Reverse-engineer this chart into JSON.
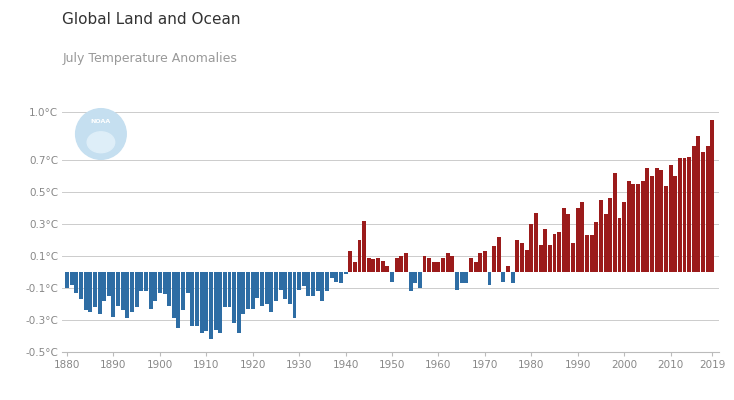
{
  "title_line1": "Global Land and Ocean",
  "title_line2": "July Temperature Anomalies",
  "title1_fontsize": 11,
  "title2_fontsize": 9,
  "ylim": [
    -0.5,
    1.05
  ],
  "xlim": [
    1879,
    2020.5
  ],
  "yticks": [
    -0.5,
    -0.3,
    -0.1,
    0.1,
    0.3,
    0.5,
    0.7,
    1.0
  ],
  "ytick_labels": [
    "-0.5°C",
    "-0.3°C",
    "-0.1°C",
    "0.1°C",
    "0.3°C",
    "0.5°C",
    "0.7°C",
    "1.0°C"
  ],
  "xticks": [
    1880,
    1890,
    1900,
    1910,
    1920,
    1930,
    1940,
    1950,
    1960,
    1970,
    1980,
    1990,
    2000,
    2010,
    2019
  ],
  "grid_color": "#cccccc",
  "bg_color": "#ffffff",
  "bar_color_positive": "#9b1b1b",
  "bar_color_negative": "#2e6da4",
  "title1_color": "#333333",
  "title2_color": "#999999",
  "tick_color": "#888888",
  "spine_color": "#bbbbbb",
  "years": [
    1880,
    1881,
    1882,
    1883,
    1884,
    1885,
    1886,
    1887,
    1888,
    1889,
    1890,
    1891,
    1892,
    1893,
    1894,
    1895,
    1896,
    1897,
    1898,
    1899,
    1900,
    1901,
    1902,
    1903,
    1904,
    1905,
    1906,
    1907,
    1908,
    1909,
    1910,
    1911,
    1912,
    1913,
    1914,
    1915,
    1916,
    1917,
    1918,
    1919,
    1920,
    1921,
    1922,
    1923,
    1924,
    1925,
    1926,
    1927,
    1928,
    1929,
    1930,
    1931,
    1932,
    1933,
    1934,
    1935,
    1936,
    1937,
    1938,
    1939,
    1940,
    1941,
    1942,
    1943,
    1944,
    1945,
    1946,
    1947,
    1948,
    1949,
    1950,
    1951,
    1952,
    1953,
    1954,
    1955,
    1956,
    1957,
    1958,
    1959,
    1960,
    1961,
    1962,
    1963,
    1964,
    1965,
    1966,
    1967,
    1968,
    1969,
    1970,
    1971,
    1972,
    1973,
    1974,
    1975,
    1976,
    1977,
    1978,
    1979,
    1980,
    1981,
    1982,
    1983,
    1984,
    1985,
    1986,
    1987,
    1988,
    1989,
    1990,
    1991,
    1992,
    1993,
    1994,
    1995,
    1996,
    1997,
    1998,
    1999,
    2000,
    2001,
    2002,
    2003,
    2004,
    2005,
    2006,
    2007,
    2008,
    2009,
    2010,
    2011,
    2012,
    2013,
    2014,
    2015,
    2016,
    2017,
    2018,
    2019
  ],
  "anomalies": [
    -0.1,
    -0.08,
    -0.13,
    -0.17,
    -0.24,
    -0.25,
    -0.22,
    -0.26,
    -0.18,
    -0.15,
    -0.28,
    -0.21,
    -0.24,
    -0.29,
    -0.25,
    -0.22,
    -0.12,
    -0.12,
    -0.23,
    -0.18,
    -0.13,
    -0.14,
    -0.21,
    -0.29,
    -0.35,
    -0.24,
    -0.13,
    -0.34,
    -0.34,
    -0.38,
    -0.37,
    -0.42,
    -0.36,
    -0.38,
    -0.22,
    -0.22,
    -0.32,
    -0.38,
    -0.26,
    -0.23,
    -0.23,
    -0.16,
    -0.21,
    -0.2,
    -0.25,
    -0.18,
    -0.11,
    -0.17,
    -0.2,
    -0.29,
    -0.11,
    -0.09,
    -0.15,
    -0.15,
    -0.12,
    -0.18,
    -0.12,
    -0.04,
    -0.06,
    -0.07,
    -0.01,
    0.13,
    0.06,
    0.2,
    0.32,
    0.09,
    0.08,
    0.09,
    0.07,
    0.04,
    -0.06,
    0.09,
    0.1,
    0.12,
    -0.12,
    -0.07,
    -0.1,
    0.1,
    0.09,
    0.06,
    0.06,
    0.09,
    0.12,
    0.1,
    -0.11,
    -0.07,
    -0.07,
    0.09,
    0.06,
    0.12,
    0.13,
    -0.08,
    0.16,
    0.22,
    -0.06,
    0.04,
    -0.07,
    0.2,
    0.18,
    0.14,
    0.3,
    0.37,
    0.17,
    0.27,
    0.17,
    0.24,
    0.25,
    0.4,
    0.36,
    0.18,
    0.4,
    0.44,
    0.23,
    0.23,
    0.31,
    0.45,
    0.36,
    0.46,
    0.62,
    0.34,
    0.44,
    0.57,
    0.55,
    0.55,
    0.57,
    0.65,
    0.6,
    0.65,
    0.64,
    0.54,
    0.67,
    0.6,
    0.71,
    0.71,
    0.72,
    0.79,
    0.85,
    0.75,
    0.79,
    0.95
  ]
}
